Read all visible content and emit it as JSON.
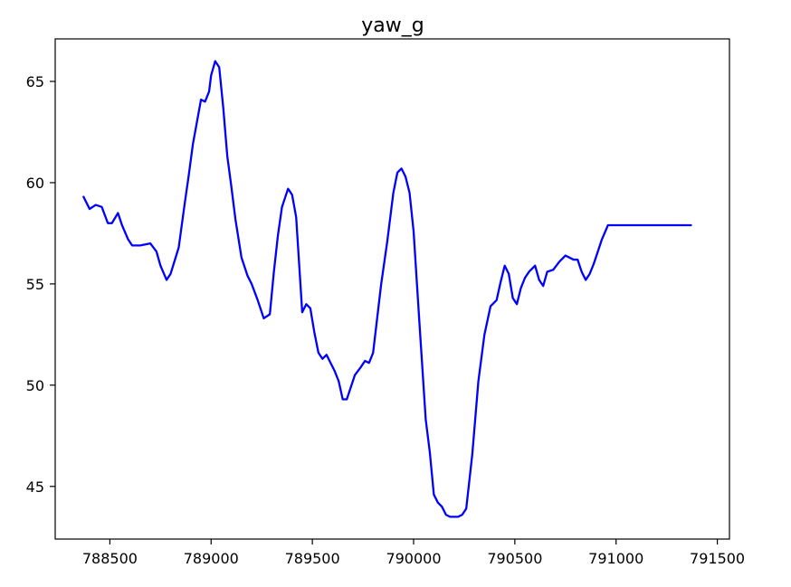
{
  "chart_data": {
    "type": "line",
    "title": "yaw_g",
    "xlabel": "",
    "ylabel": "",
    "xlim": [
      788230,
      791560
    ],
    "ylim": [
      42.4,
      67.1
    ],
    "grid": false,
    "colors": {
      "line": "#0000ff",
      "axes": "#000000",
      "background": "#ffffff"
    },
    "x_ticks": [
      788500,
      789000,
      789500,
      790000,
      790500,
      791000,
      791500
    ],
    "x_tick_labels": [
      "788500",
      "789000",
      "789500",
      "790000",
      "790500",
      "791000",
      "791500"
    ],
    "y_ticks": [
      45,
      50,
      55,
      60,
      65
    ],
    "y_tick_labels": [
      "45",
      "50",
      "55",
      "60",
      "65"
    ],
    "series": [
      {
        "color": "#0000ff",
        "x": [
          788370,
          788400,
          788430,
          788460,
          788490,
          788510,
          788540,
          788560,
          788590,
          788610,
          788650,
          788700,
          788730,
          788750,
          788780,
          788800,
          788840,
          788870,
          788890,
          788910,
          788930,
          788950,
          788970,
          788990,
          789000,
          789020,
          789040,
          789060,
          789080,
          789100,
          789120,
          789150,
          789180,
          789200,
          789230,
          789260,
          789290,
          789310,
          789330,
          789350,
          789380,
          789400,
          789420,
          789450,
          789470,
          789490,
          789510,
          789530,
          789550,
          789570,
          789590,
          789610,
          789630,
          789650,
          789670,
          789690,
          789710,
          789740,
          789760,
          789780,
          789800,
          789820,
          789840,
          789870,
          789900,
          789920,
          789940,
          789960,
          789980,
          790000,
          790030,
          790060,
          790080,
          790100,
          790120,
          790140,
          790160,
          790180,
          790200,
          790220,
          790240,
          790260,
          790290,
          790320,
          790350,
          790380,
          790410,
          790430,
          790450,
          790470,
          790490,
          790510,
          790530,
          790550,
          790570,
          790600,
          790620,
          790640,
          790660,
          790690,
          790720,
          790750,
          790770,
          790790,
          790810,
          790830,
          790850,
          790870,
          790890,
          790910,
          790930,
          790960,
          790990,
          791020,
          791050,
          791080,
          791100,
          791120,
          791140,
          791170,
          791200,
          791230,
          791260,
          791290,
          791320,
          791340,
          791370
        ],
        "y": [
          59.3,
          58.7,
          58.9,
          58.8,
          58.0,
          58.0,
          58.5,
          57.9,
          57.2,
          56.9,
          56.9,
          57.0,
          56.6,
          55.9,
          55.2,
          55.5,
          56.8,
          59.0,
          60.4,
          61.9,
          63.0,
          64.1,
          64.0,
          64.5,
          65.3,
          66.0,
          65.7,
          63.7,
          61.3,
          59.8,
          58.2,
          56.3,
          55.4,
          55.0,
          54.2,
          53.3,
          53.5,
          55.6,
          57.4,
          58.8,
          59.7,
          59.4,
          58.3,
          53.6,
          54.0,
          53.8,
          52.6,
          51.6,
          51.3,
          51.5,
          51.1,
          50.7,
          50.2,
          49.3,
          49.3,
          49.9,
          50.5,
          50.9,
          51.2,
          51.1,
          51.6,
          53.3,
          55.0,
          57.1,
          59.5,
          60.5,
          60.7,
          60.3,
          59.5,
          57.6,
          52.9,
          48.3,
          46.7,
          44.6,
          44.2,
          44.0,
          43.6,
          43.5,
          43.5,
          43.5,
          43.6,
          43.9,
          46.6,
          50.2,
          52.5,
          53.9,
          54.2,
          55.1,
          55.9,
          55.5,
          54.3,
          54.0,
          54.8,
          55.3,
          55.6,
          55.9,
          55.2,
          54.9,
          55.6,
          55.7,
          56.1,
          56.4,
          56.3,
          56.2,
          56.2,
          55.6,
          55.2,
          55.5,
          56.0,
          56.6,
          57.2,
          57.9,
          57.9,
          57.9,
          57.9,
          57.9,
          57.9,
          57.9,
          57.9,
          57.9,
          57.9,
          57.9,
          57.9,
          57.9,
          57.9,
          57.9,
          57.9
        ]
      }
    ]
  }
}
